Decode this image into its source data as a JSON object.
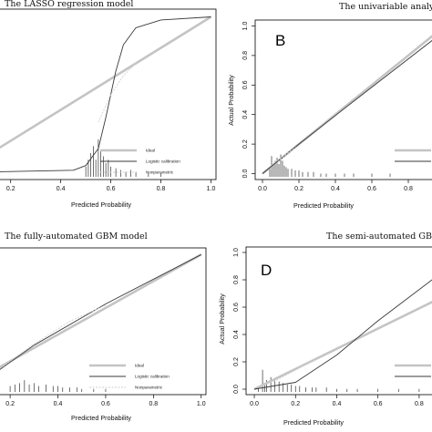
{
  "chart_data": [
    {
      "type": "line",
      "title": "The LASSO regression model",
      "panel_letter": "",
      "xlabel": "Predicted Probability",
      "ylabel": "",
      "x_ticks": [
        "0.2",
        "0.4",
        "0.6",
        "0.8",
        "1.0"
      ],
      "y_ticks": [],
      "xlim": [
        0.15,
        1.02
      ],
      "ylim": [
        -0.05,
        1.05
      ],
      "legend": {
        "placement": "bottom-right",
        "entries": [
          "Ideal",
          "Logistic calibration",
          "Nonparametric"
        ]
      },
      "series": [
        {
          "name": "Ideal",
          "x": [
            0.15,
            1.0
          ],
          "y": [
            0.15,
            1.0
          ]
        },
        {
          "name": "Logistic calibration",
          "x": [
            0.15,
            0.45,
            0.5,
            0.55,
            0.58,
            0.6,
            0.62,
            0.65,
            0.7,
            0.8,
            1.0
          ],
          "y": [
            0.0,
            0.01,
            0.04,
            0.15,
            0.35,
            0.5,
            0.65,
            0.82,
            0.93,
            0.98,
            1.0
          ]
        },
        {
          "name": "Nonparametric",
          "x": [
            0.55,
            0.6,
            0.65,
            0.7
          ],
          "y": [
            0.32,
            0.5,
            0.62,
            0.7
          ]
        }
      ],
      "rug": {
        "x": [
          0.5,
          0.51,
          0.52,
          0.53,
          0.54,
          0.55,
          0.56,
          0.57,
          0.58,
          0.59,
          0.6,
          0.62,
          0.64,
          0.66,
          0.68,
          0.7,
          0.75,
          0.8
        ],
        "h": [
          0.06,
          0.1,
          0.14,
          0.18,
          0.1,
          0.22,
          0.16,
          0.12,
          0.08,
          0.1,
          0.06,
          0.05,
          0.04,
          0.03,
          0.04,
          0.03,
          0.02,
          0.02
        ]
      }
    },
    {
      "type": "line",
      "title": "The univariable analysis",
      "panel_letter": "B",
      "xlabel": "Predicted Probability",
      "ylabel": "Actual Probability",
      "x_ticks": [
        "0.0",
        "0.2",
        "0.4",
        "0.6",
        "0.8"
      ],
      "y_ticks": [
        "0.0",
        "0.2",
        "0.4",
        "0.6",
        "0.8",
        "1.0"
      ],
      "xlim": [
        -0.04,
        0.95
      ],
      "ylim": [
        -0.04,
        1.04
      ],
      "legend": {
        "placement": "bottom-right",
        "entries": [
          "",
          ""
        ]
      },
      "series": [
        {
          "name": "",
          "x": [
            0.0,
            0.95
          ],
          "y": [
            0.0,
            0.95
          ]
        },
        {
          "name": "",
          "x": [
            0.0,
            0.2,
            0.5,
            0.95
          ],
          "y": [
            0.0,
            0.2,
            0.49,
            0.92
          ]
        },
        {
          "name": "",
          "x": [
            0.05,
            0.1,
            0.15,
            0.2
          ],
          "y": [
            0.03,
            0.1,
            0.15,
            0.19
          ]
        }
      ],
      "rug": {
        "x": [
          0.04,
          0.05,
          0.06,
          0.07,
          0.08,
          0.09,
          0.1,
          0.11,
          0.12,
          0.13,
          0.14,
          0.16,
          0.18,
          0.2,
          0.22,
          0.25,
          0.28,
          0.32,
          0.35,
          0.4,
          0.45,
          0.5,
          0.6,
          0.7
        ],
        "h": [
          0.05,
          0.13,
          0.08,
          0.1,
          0.12,
          0.08,
          0.14,
          0.1,
          0.07,
          0.06,
          0.05,
          0.05,
          0.04,
          0.04,
          0.03,
          0.03,
          0.03,
          0.02,
          0.02,
          0.02,
          0.02,
          0.02,
          0.02,
          0.02
        ]
      }
    },
    {
      "type": "line",
      "title": "The fully-automated GBM model",
      "panel_letter": "",
      "xlabel": "Predicted Probability",
      "ylabel": "",
      "x_ticks": [
        "0.2",
        "0.4",
        "0.6",
        "0.8",
        "1.0"
      ],
      "y_ticks": [],
      "xlim": [
        0.15,
        1.02
      ],
      "ylim": [
        -0.05,
        1.05
      ],
      "legend": {
        "placement": "bottom-right",
        "entries": [
          "Ideal",
          "Logistic calibration",
          "Nonparametric"
        ]
      },
      "series": [
        {
          "name": "Ideal",
          "x": [
            0.15,
            1.0
          ],
          "y": [
            0.15,
            1.0
          ]
        },
        {
          "name": "Logistic calibration",
          "x": [
            0.15,
            0.3,
            0.6,
            1.0
          ],
          "y": [
            0.13,
            0.32,
            0.63,
            1.0
          ]
        },
        {
          "name": "Nonparametric",
          "x": [
            0.17,
            0.2,
            0.3,
            0.45,
            0.6
          ],
          "y": [
            0.16,
            0.2,
            0.33,
            0.5,
            0.62
          ]
        }
      ],
      "rug": {
        "x": [
          0.2,
          0.22,
          0.24,
          0.26,
          0.28,
          0.3,
          0.32,
          0.35,
          0.38,
          0.4,
          0.42,
          0.45,
          0.48,
          0.5,
          0.55,
          0.6
        ],
        "h": [
          0.04,
          0.05,
          0.06,
          0.08,
          0.05,
          0.06,
          0.04,
          0.05,
          0.04,
          0.04,
          0.03,
          0.03,
          0.03,
          0.02,
          0.02,
          0.02
        ]
      }
    },
    {
      "type": "line",
      "title": "The semi-automated GBM mo",
      "panel_letter": "D",
      "xlabel": "Predicted Probability",
      "ylabel": "Actual Probability",
      "x_ticks": [
        "0.0",
        "0.2",
        "0.4",
        "0.6",
        "0.8"
      ],
      "y_ticks": [
        "0.0",
        "0.2",
        "0.4",
        "0.6",
        "0.8",
        "1.0"
      ],
      "xlim": [
        -0.04,
        0.88
      ],
      "ylim": [
        -0.04,
        1.04
      ],
      "legend": {
        "placement": "bottom-right",
        "entries": [
          "",
          ""
        ]
      },
      "series": [
        {
          "name": "",
          "x": [
            0.0,
            0.88
          ],
          "y": [
            0.0,
            0.65
          ]
        },
        {
          "name": "",
          "x": [
            0.0,
            0.2,
            0.4,
            0.6,
            0.88
          ],
          "y": [
            0.0,
            0.05,
            0.25,
            0.5,
            0.82
          ]
        },
        {
          "name": "",
          "x": [
            0.02,
            0.1,
            0.2,
            0.3
          ],
          "y": [
            0.02,
            0.06,
            0.14,
            0.22
          ]
        }
      ],
      "rug": {
        "x": [
          0.02,
          0.04,
          0.05,
          0.06,
          0.08,
          0.1,
          0.12,
          0.14,
          0.16,
          0.18,
          0.2,
          0.22,
          0.25,
          0.28,
          0.3,
          0.35,
          0.4,
          0.45,
          0.5,
          0.6,
          0.7,
          0.8
        ],
        "h": [
          0.04,
          0.15,
          0.06,
          0.08,
          0.1,
          0.08,
          0.07,
          0.06,
          0.05,
          0.05,
          0.04,
          0.04,
          0.03,
          0.03,
          0.03,
          0.03,
          0.02,
          0.02,
          0.02,
          0.02,
          0.02,
          0.02
        ]
      }
    }
  ]
}
